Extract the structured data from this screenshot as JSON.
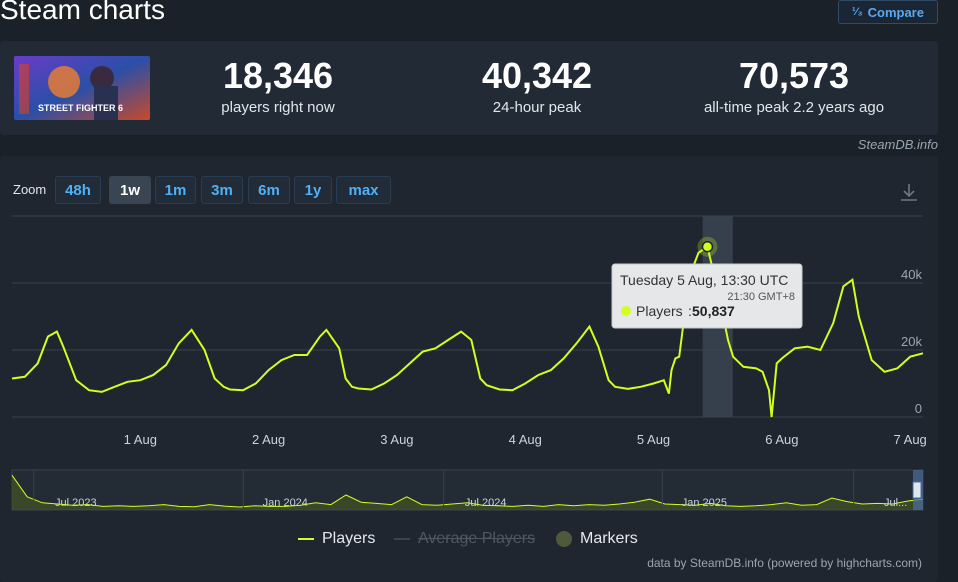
{
  "page": {
    "title": "Steam charts",
    "compare_label": "Compare",
    "compare_icon": "fraction-icon"
  },
  "stats": {
    "thumb_text": "STREET FIGHTER 6",
    "players_now": "18,346",
    "players_now_label": "players right now",
    "peak_24h": "40,342",
    "peak_24h_label": "24-hour peak",
    "all_time_peak": "70,573",
    "all_time_peak_label": "all-time peak 2.2 years ago",
    "credit": "SteamDB.info"
  },
  "zoom": {
    "label": "Zoom",
    "options": [
      "48h",
      "1w",
      "1m",
      "3m",
      "6m",
      "1y",
      "max"
    ],
    "active": "1w"
  },
  "tooltip": {
    "date": "Tuesday 5 Aug, 13:30 UTC",
    "local": "21:30 GMT+8",
    "series": "Players",
    "value": "50,837"
  },
  "legend": {
    "players": "Players",
    "average": "Average Players",
    "markers": "Markers"
  },
  "footer": {
    "credit": "data by SteamDB.info (powered by highcharts.com)"
  },
  "colors": {
    "series": "#d2ff20",
    "background": "#1f262f",
    "accent": "#4fb0f5"
  },
  "chart_data": {
    "type": "line",
    "series": [
      {
        "name": "Players",
        "x": [
          0.0,
          0.1,
          0.2,
          0.28,
          0.35,
          0.4,
          0.5,
          0.6,
          0.7,
          0.8,
          0.9,
          1.0,
          1.1,
          1.2,
          1.3,
          1.4,
          1.5,
          1.58,
          1.65,
          1.7,
          1.8,
          1.9,
          2.0,
          2.1,
          2.2,
          2.3,
          2.4,
          2.45,
          2.55,
          2.6,
          2.65,
          2.7,
          2.8,
          2.9,
          3.0,
          3.1,
          3.2,
          3.3,
          3.4,
          3.5,
          3.58,
          3.65,
          3.7,
          3.8,
          3.9,
          4.0,
          4.1,
          4.2,
          4.3,
          4.4,
          4.5,
          4.57,
          4.65,
          4.7,
          4.8,
          4.9,
          5.0,
          5.08,
          5.12,
          5.14,
          5.17,
          5.2,
          5.28,
          5.35,
          5.42,
          5.5,
          5.58,
          5.62,
          5.7,
          5.8,
          5.85,
          5.9,
          5.92,
          5.96,
          6.0,
          6.1,
          6.2,
          6.3,
          6.4,
          6.48,
          6.55,
          6.6,
          6.7,
          6.8,
          6.9,
          7.0,
          7.1
        ],
        "y": [
          11500,
          12000,
          16000,
          24000,
          25500,
          21000,
          11000,
          8000,
          7500,
          9000,
          10500,
          11000,
          12500,
          15500,
          22000,
          26000,
          20000,
          11500,
          9000,
          8200,
          8000,
          10000,
          14000,
          17000,
          18500,
          18500,
          24000,
          26000,
          20500,
          11500,
          9000,
          8500,
          8200,
          10000,
          12500,
          16000,
          19500,
          20500,
          23000,
          25500,
          23000,
          11500,
          9500,
          8200,
          8000,
          10000,
          12500,
          14000,
          17500,
          22000,
          27000,
          21000,
          11000,
          9000,
          8400,
          9000,
          10000,
          11000,
          7000,
          14000,
          17500,
          18000,
          42000,
          49000,
          50837,
          38000,
          23000,
          18000,
          15000,
          14500,
          13500,
          8000,
          0,
          16000,
          17500,
          20500,
          21000,
          20000,
          28000,
          39000,
          41000,
          30000,
          17000,
          13500,
          14500,
          18000,
          19000
        ]
      }
    ],
    "x_tick_labels": [
      "1 Aug",
      "2 Aug",
      "3 Aug",
      "4 Aug",
      "5 Aug",
      "6 Aug",
      "7 Aug"
    ],
    "x_tick_values": [
      1,
      2,
      3,
      4,
      5,
      6,
      7
    ],
    "y_tick_labels": [
      "0",
      "20k",
      "40k"
    ],
    "y_tick_values": [
      0,
      20000,
      40000
    ],
    "xlim": [
      0,
      7.1
    ],
    "ylim": [
      0,
      60000
    ],
    "highlight_x": 5.5,
    "navigator": {
      "labels": [
        "Jul 2023",
        "Jan 2024",
        "Jul 2024",
        "Jan 2025",
        "Jul..."
      ],
      "values": [
        58000,
        22000,
        12000,
        10000,
        8000,
        9000,
        6000,
        7000,
        6000,
        7000,
        9000,
        6000,
        5500,
        9000,
        6500,
        5000,
        7000,
        6000,
        6000,
        8000,
        12000,
        9000,
        25000,
        13000,
        11000,
        9000,
        22000,
        9000,
        8000,
        10000,
        12000,
        8000,
        7000,
        6000,
        8000,
        6000,
        9000,
        7000,
        9000,
        8000,
        10000,
        13000,
        18000,
        10000,
        9000,
        8000,
        11000,
        7000,
        6000,
        7000,
        9000,
        12000,
        8000,
        9000,
        20000,
        14000,
        10000,
        11000,
        10000,
        15000,
        18000
      ],
      "max": 60000
    },
    "grid": true,
    "legend_position": "bottom"
  }
}
